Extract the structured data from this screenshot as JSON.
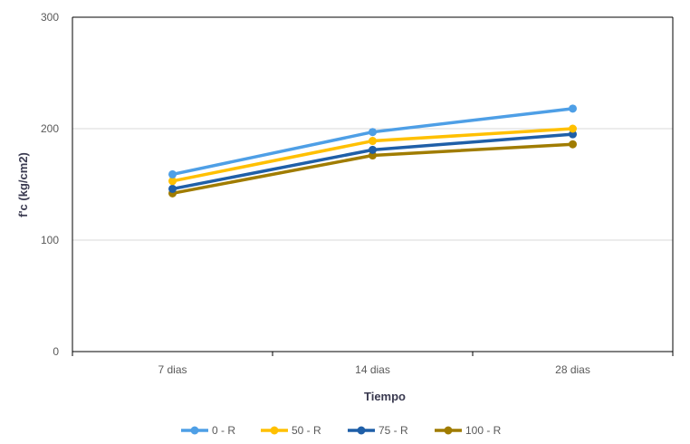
{
  "chart_data": {
    "type": "line",
    "categories": [
      "7 dias",
      "14 dias",
      "28 dias"
    ],
    "series": [
      {
        "name": "0 - R",
        "color": "#4e9fe6",
        "values": [
          159,
          197,
          218
        ]
      },
      {
        "name": "50 - R",
        "color": "#ffc000",
        "values": [
          153,
          189,
          200
        ]
      },
      {
        "name": "75 - R",
        "color": "#1f5fa8",
        "values": [
          146,
          181,
          195
        ]
      },
      {
        "name": "100 - R",
        "color": "#a07c00",
        "values": [
          142,
          176,
          186
        ]
      }
    ],
    "xlabel": "Tiempo",
    "ylabel": "f'c (kg/cm2)",
    "ylim": [
      0,
      300
    ],
    "yticks": [
      0,
      100,
      200,
      300
    ],
    "grid": true,
    "legend_position": "bottom"
  }
}
